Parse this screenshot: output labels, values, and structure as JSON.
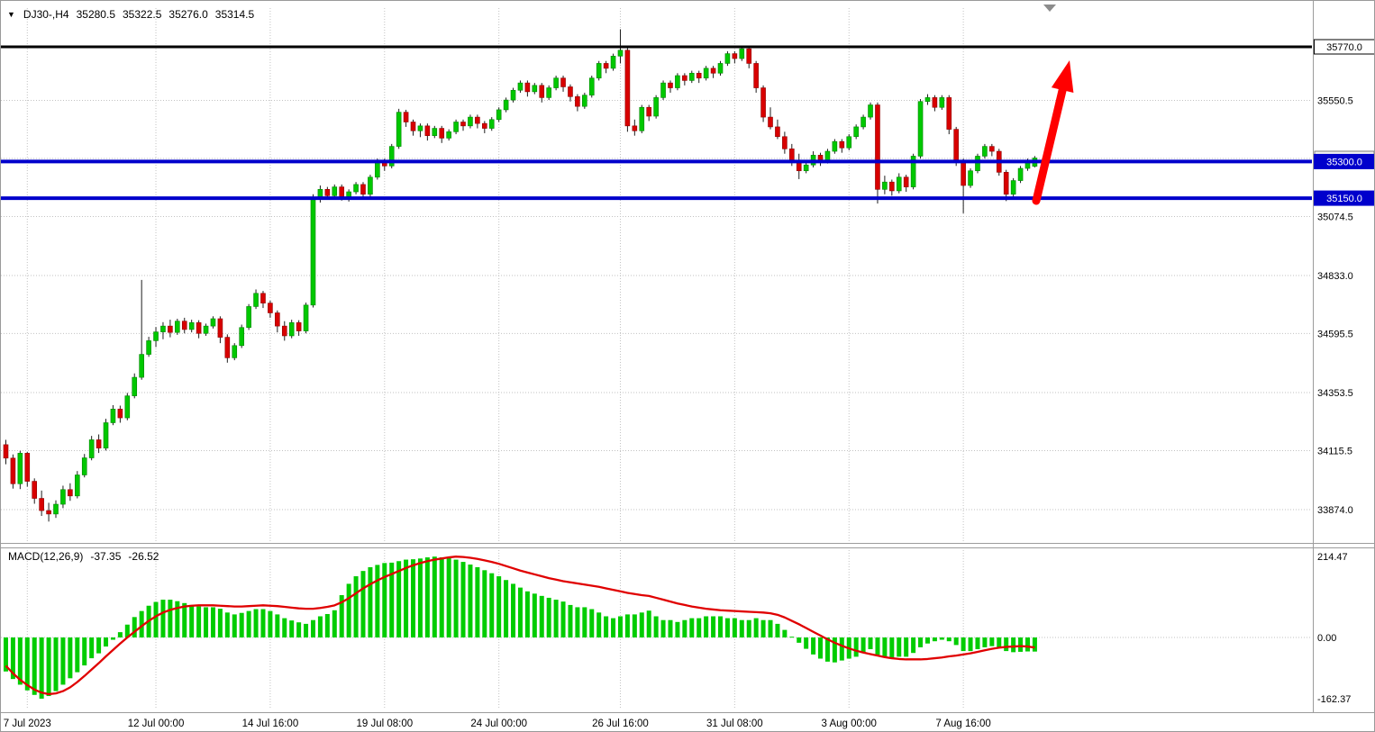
{
  "header": {
    "collapse_icon": "▼",
    "symbol": "DJ30-,H4",
    "open": "35280.5",
    "high": "35322.5",
    "low": "35276.0",
    "close": "35314.5"
  },
  "macd": {
    "title": "MACD(12,26,9)",
    "main_value": "-37.35",
    "signal_value": "-26.52",
    "axis_labels": [
      {
        "text": "214.47",
        "value": 214.47
      },
      {
        "text": "0.00",
        "value": 0
      },
      {
        "text": "-162.37",
        "value": -162.37
      }
    ]
  },
  "colors": {
    "bull": "#00C800",
    "bull_border": "#008500",
    "bear": "#D80000",
    "bear_border": "#8f0000",
    "wick": "#1e1e1e",
    "grid": "#c2c2c2",
    "level_blue": "#0000CC",
    "level_black": "#000000",
    "signal_line": "#E00000",
    "histogram": "#00CC00",
    "arrow": "#FF0000",
    "axis_line": "#9c9c9c",
    "text": "#000000"
  },
  "price_axis": {
    "current_price": "35314.5",
    "grid_labels": [
      {
        "text": "35550.5",
        "price": 35550.5
      },
      {
        "text": "35074.5",
        "price": 35074.5
      },
      {
        "text": "34833.0",
        "price": 34833.0
      },
      {
        "text": "34595.5",
        "price": 34595.5
      },
      {
        "text": "34353.5",
        "price": 34353.5
      },
      {
        "text": "34115.5",
        "price": 34115.5
      },
      {
        "text": "33874.0",
        "price": 33874.0
      }
    ]
  },
  "time_axis": {
    "labels": [
      {
        "text": "7 Jul 2023",
        "bar": 3
      },
      {
        "text": "12 Jul 00:00",
        "bar": 21
      },
      {
        "text": "14 Jul 16:00",
        "bar": 37
      },
      {
        "text": "19 Jul 08:00",
        "bar": 53
      },
      {
        "text": "24 Jul 00:00",
        "bar": 69
      },
      {
        "text": "26 Jul 16:00",
        "bar": 86
      },
      {
        "text": "31 Jul 08:00",
        "bar": 102
      },
      {
        "text": "3 Aug 00:00",
        "bar": 118
      },
      {
        "text": "7 Aug 16:00",
        "bar": 134
      }
    ]
  },
  "chart_data": {
    "type": "candlestick+macd",
    "symbol": "DJ30-",
    "timeframe": "H4",
    "current_ohlc": {
      "open": 35280.5,
      "high": 35322.5,
      "low": 35276.0,
      "close": 35314.5
    },
    "price_gridlines": [
      35550.5,
      35312.5,
      35074.5,
      34833.0,
      34595.5,
      34353.5,
      34115.5,
      33874.0
    ],
    "visible_price_range": [
      33744,
      35928
    ],
    "macd_visible_range": [
      -186,
      236
    ],
    "levels": [
      {
        "name": "resistance-line-35770",
        "label": "35770.0",
        "price": 35770.0,
        "color": "#000000",
        "width": 3,
        "label_style": "outline"
      },
      {
        "name": "support-line-35300",
        "label": "35300.0",
        "price": 35300.0,
        "color": "#0000CC",
        "width": 4,
        "label_style": "filled"
      },
      {
        "name": "support-line-35150",
        "label": "35150.0",
        "price": 35150.0,
        "color": "#0000CC",
        "width": 4,
        "label_style": "filled"
      }
    ],
    "annotations": [
      {
        "type": "arrow",
        "name": "bullish-projection-arrow",
        "color": "#FF0000",
        "tail": [
          1149,
          222
        ],
        "head": [
          1186,
          66
        ]
      }
    ],
    "candles": [
      [
        34140,
        34160,
        34060,
        34085
      ],
      [
        34085,
        34100,
        33960,
        33980
      ],
      [
        33980,
        34115,
        33958,
        34105
      ],
      [
        34105,
        34110,
        33968,
        33990
      ],
      [
        33990,
        34002,
        33898,
        33920
      ],
      [
        33920,
        33952,
        33848,
        33870
      ],
      [
        33870,
        33902,
        33825,
        33856
      ],
      [
        33856,
        33912,
        33840,
        33896
      ],
      [
        33896,
        33972,
        33880,
        33956
      ],
      [
        33956,
        33982,
        33910,
        33930
      ],
      [
        33930,
        34032,
        33920,
        34016
      ],
      [
        34016,
        34102,
        34006,
        34086
      ],
      [
        34086,
        34176,
        34076,
        34160
      ],
      [
        34160,
        34182,
        34106,
        34126
      ],
      [
        34126,
        34246,
        34116,
        34230
      ],
      [
        34230,
        34302,
        34220,
        34286
      ],
      [
        34286,
        34300,
        34230,
        34250
      ],
      [
        34250,
        34352,
        34240,
        34340
      ],
      [
        34340,
        34432,
        34330,
        34416
      ],
      [
        34416,
        34815,
        34406,
        34510
      ],
      [
        34510,
        34582,
        34500,
        34566
      ],
      [
        34566,
        34622,
        34540,
        34602
      ],
      [
        34602,
        34642,
        34572,
        34626
      ],
      [
        34626,
        34652,
        34580,
        34600
      ],
      [
        34600,
        34656,
        34590,
        34646
      ],
      [
        34646,
        34660,
        34596,
        34612
      ],
      [
        34612,
        34652,
        34600,
        34640
      ],
      [
        34640,
        34650,
        34576,
        34596
      ],
      [
        34596,
        34636,
        34586,
        34626
      ],
      [
        34626,
        34666,
        34616,
        34656
      ],
      [
        34656,
        34666,
        34556,
        34580
      ],
      [
        34580,
        34592,
        34476,
        34496
      ],
      [
        34496,
        34556,
        34486,
        34546
      ],
      [
        34546,
        34632,
        34536,
        34620
      ],
      [
        34620,
        34716,
        34610,
        34706
      ],
      [
        34706,
        34776,
        34696,
        34760
      ],
      [
        34760,
        34770,
        34700,
        34720
      ],
      [
        34720,
        34730,
        34660,
        34680
      ],
      [
        34680,
        34690,
        34600,
        34626
      ],
      [
        34626,
        34646,
        34566,
        34586
      ],
      [
        34586,
        34652,
        34576,
        34640
      ],
      [
        34640,
        34650,
        34586,
        34606
      ],
      [
        34606,
        34722,
        34596,
        34712
      ],
      [
        34712,
        35166,
        34702,
        35152
      ],
      [
        35152,
        35202,
        35132,
        35186
      ],
      [
        35186,
        35196,
        35146,
        35160
      ],
      [
        35160,
        35206,
        35150,
        35196
      ],
      [
        35196,
        35206,
        35140,
        35156
      ],
      [
        35156,
        35186,
        35136,
        35176
      ],
      [
        35176,
        35216,
        35166,
        35206
      ],
      [
        35206,
        35216,
        35150,
        35166
      ],
      [
        35166,
        35246,
        35156,
        35236
      ],
      [
        35236,
        35312,
        35226,
        35302
      ],
      [
        35302,
        35312,
        35262,
        35282
      ],
      [
        35282,
        35372,
        35272,
        35362
      ],
      [
        35362,
        35516,
        35352,
        35502
      ],
      [
        35502,
        35512,
        35442,
        35462
      ],
      [
        35462,
        35472,
        35406,
        35426
      ],
      [
        35426,
        35456,
        35400,
        35446
      ],
      [
        35446,
        35456,
        35386,
        35406
      ],
      [
        35406,
        35446,
        35396,
        35436
      ],
      [
        35436,
        35446,
        35376,
        35396
      ],
      [
        35396,
        35432,
        35386,
        35422
      ],
      [
        35422,
        35472,
        35412,
        35462
      ],
      [
        35462,
        35472,
        35426,
        35446
      ],
      [
        35446,
        35492,
        35436,
        35482
      ],
      [
        35482,
        35492,
        35436,
        35456
      ],
      [
        35456,
        35466,
        35416,
        35436
      ],
      [
        35436,
        35482,
        35426,
        35472
      ],
      [
        35472,
        35522,
        35462,
        35512
      ],
      [
        35512,
        35562,
        35502,
        35552
      ],
      [
        35552,
        35602,
        35542,
        35592
      ],
      [
        35592,
        35632,
        35582,
        35622
      ],
      [
        35622,
        35632,
        35566,
        35586
      ],
      [
        35586,
        35622,
        35576,
        35612
      ],
      [
        35612,
        35622,
        35542,
        35562
      ],
      [
        35562,
        35612,
        35552,
        35602
      ],
      [
        35602,
        35652,
        35592,
        35642
      ],
      [
        35642,
        35652,
        35586,
        35606
      ],
      [
        35606,
        35616,
        35546,
        35566
      ],
      [
        35566,
        35576,
        35506,
        35526
      ],
      [
        35526,
        35582,
        35516,
        35572
      ],
      [
        35572,
        35652,
        35562,
        35642
      ],
      [
        35642,
        35712,
        35632,
        35702
      ],
      [
        35702,
        35712,
        35662,
        35682
      ],
      [
        35682,
        35742,
        35672,
        35732
      ],
      [
        35732,
        35842,
        35702,
        35756
      ],
      [
        35756,
        35766,
        35422,
        35446
      ],
      [
        35446,
        35472,
        35406,
        35426
      ],
      [
        35426,
        35532,
        35416,
        35522
      ],
      [
        35522,
        35532,
        35466,
        35486
      ],
      [
        35486,
        35572,
        35476,
        35562
      ],
      [
        35562,
        35632,
        35552,
        35622
      ],
      [
        35622,
        35632,
        35582,
        35602
      ],
      [
        35602,
        35662,
        35592,
        35652
      ],
      [
        35652,
        35662,
        35612,
        35632
      ],
      [
        35632,
        35672,
        35622,
        35662
      ],
      [
        35662,
        35672,
        35622,
        35642
      ],
      [
        35642,
        35692,
        35632,
        35682
      ],
      [
        35682,
        35692,
        35642,
        35662
      ],
      [
        35662,
        35712,
        35652,
        35702
      ],
      [
        35702,
        35752,
        35692,
        35742
      ],
      [
        35742,
        35752,
        35702,
        35722
      ],
      [
        35722,
        35772,
        35712,
        35762
      ],
      [
        35762,
        35772,
        35682,
        35702
      ],
      [
        35702,
        35712,
        35582,
        35602
      ],
      [
        35602,
        35612,
        35462,
        35482
      ],
      [
        35482,
        35522,
        35432,
        35442
      ],
      [
        35442,
        35472,
        35392,
        35402
      ],
      [
        35402,
        35422,
        35332,
        35352
      ],
      [
        35352,
        35372,
        35282,
        35302
      ],
      [
        35302,
        35332,
        35228,
        35262
      ],
      [
        35262,
        35302,
        35252,
        35286
      ],
      [
        35286,
        35342,
        35276,
        35326
      ],
      [
        35326,
        35336,
        35282,
        35302
      ],
      [
        35302,
        35352,
        35292,
        35342
      ],
      [
        35342,
        35392,
        35332,
        35382
      ],
      [
        35382,
        35392,
        35336,
        35356
      ],
      [
        35356,
        35412,
        35346,
        35402
      ],
      [
        35402,
        35452,
        35392,
        35442
      ],
      [
        35442,
        35492,
        35432,
        35482
      ],
      [
        35482,
        35542,
        35472,
        35532
      ],
      [
        35532,
        35542,
        35128,
        35186
      ],
      [
        35186,
        35242,
        35166,
        35216
      ],
      [
        35216,
        35226,
        35160,
        35180
      ],
      [
        35180,
        35252,
        35170,
        35236
      ],
      [
        35236,
        35246,
        35176,
        35196
      ],
      [
        35196,
        35332,
        35186,
        35322
      ],
      [
        35322,
        35556,
        35312,
        35546
      ],
      [
        35546,
        35576,
        35532,
        35562
      ],
      [
        35562,
        35572,
        35506,
        35522
      ],
      [
        35522,
        35572,
        35512,
        35562
      ],
      [
        35562,
        35572,
        35412,
        35432
      ],
      [
        35432,
        35442,
        35282,
        35302
      ],
      [
        35302,
        35312,
        35088,
        35202
      ],
      [
        35202,
        35272,
        35192,
        35262
      ],
      [
        35262,
        35332,
        35252,
        35322
      ],
      [
        35322,
        35372,
        35312,
        35362
      ],
      [
        35362,
        35372,
        35322,
        35342
      ],
      [
        35342,
        35352,
        35242,
        35256
      ],
      [
        35256,
        35266,
        35138,
        35166
      ],
      [
        35166,
        35232,
        35156,
        35222
      ],
      [
        35222,
        35282,
        35212,
        35272
      ],
      [
        35272,
        35312,
        35262,
        35296
      ],
      [
        35280.5,
        35322.5,
        35276,
        35314.5
      ]
    ],
    "macd_histogram": [
      -90,
      -110,
      -125,
      -140,
      -152,
      -162,
      -155,
      -142,
      -125,
      -108,
      -92,
      -74,
      -55,
      -42,
      -24,
      -6,
      14,
      34,
      54,
      70,
      84,
      94,
      100,
      100,
      96,
      91,
      86,
      82,
      80,
      80,
      76,
      66,
      61,
      65,
      70,
      75,
      75,
      70,
      61,
      51,
      45,
      40,
      36,
      46,
      56,
      62,
      72,
      112,
      142,
      162,
      176,
      186,
      192,
      197,
      198,
      202,
      206,
      207,
      209,
      212,
      214,
      212,
      210,
      206,
      200,
      193,
      186,
      178,
      170,
      162,
      152,
      142,
      132,
      122,
      116,
      110,
      105,
      100,
      95,
      86,
      80,
      80,
      75,
      66,
      56,
      51,
      56,
      61,
      61,
      66,
      71,
      56,
      46,
      46,
      41,
      46,
      51,
      51,
      56,
      56,
      56,
      51,
      51,
      46,
      46,
      51,
      46,
      46,
      36,
      20,
      2,
      -14,
      -30,
      -45,
      -56,
      -64,
      -66,
      -61,
      -56,
      -51,
      -41,
      -31,
      -46,
      -51,
      -56,
      -51,
      -51,
      -41,
      -26,
      -16,
      -10,
      -6,
      -10,
      -20,
      -36,
      -36,
      -31,
      -26,
      -23,
      -26,
      -36,
      -39,
      -38,
      -37,
      -37.35
    ],
    "macd_signal": [
      -75,
      -95,
      -112,
      -126,
      -138,
      -146,
      -150,
      -148,
      -142,
      -132,
      -118,
      -102,
      -85,
      -68,
      -50,
      -33,
      -16,
      0,
      15,
      30,
      44,
      56,
      66,
      73,
      78,
      82,
      84,
      85,
      85,
      85,
      84,
      83,
      82,
      82,
      83,
      84,
      85,
      84,
      83,
      81,
      79,
      77,
      76,
      76,
      78,
      81,
      85,
      93,
      104,
      117,
      130,
      141,
      151,
      160,
      168,
      176,
      184,
      191,
      197,
      202,
      206,
      209,
      212,
      214,
      213,
      211,
      208,
      204,
      200,
      195,
      189,
      183,
      177,
      172,
      167,
      162,
      157,
      153,
      149,
      146,
      143,
      140,
      137,
      134,
      130,
      126,
      122,
      118,
      115,
      112,
      110,
      105,
      100,
      95,
      90,
      86,
      82,
      79,
      76,
      74,
      72,
      71,
      70,
      69,
      68,
      67,
      66,
      64,
      60,
      53,
      44,
      35,
      25,
      15,
      5,
      -5,
      -14,
      -22,
      -29,
      -35,
      -40,
      -44,
      -48,
      -52,
      -55,
      -57,
      -58,
      -58,
      -58,
      -57,
      -55,
      -53,
      -50,
      -48,
      -45,
      -42,
      -38,
      -34,
      -30,
      -27,
      -25,
      -24,
      -23,
      -24,
      -26.52
    ]
  }
}
